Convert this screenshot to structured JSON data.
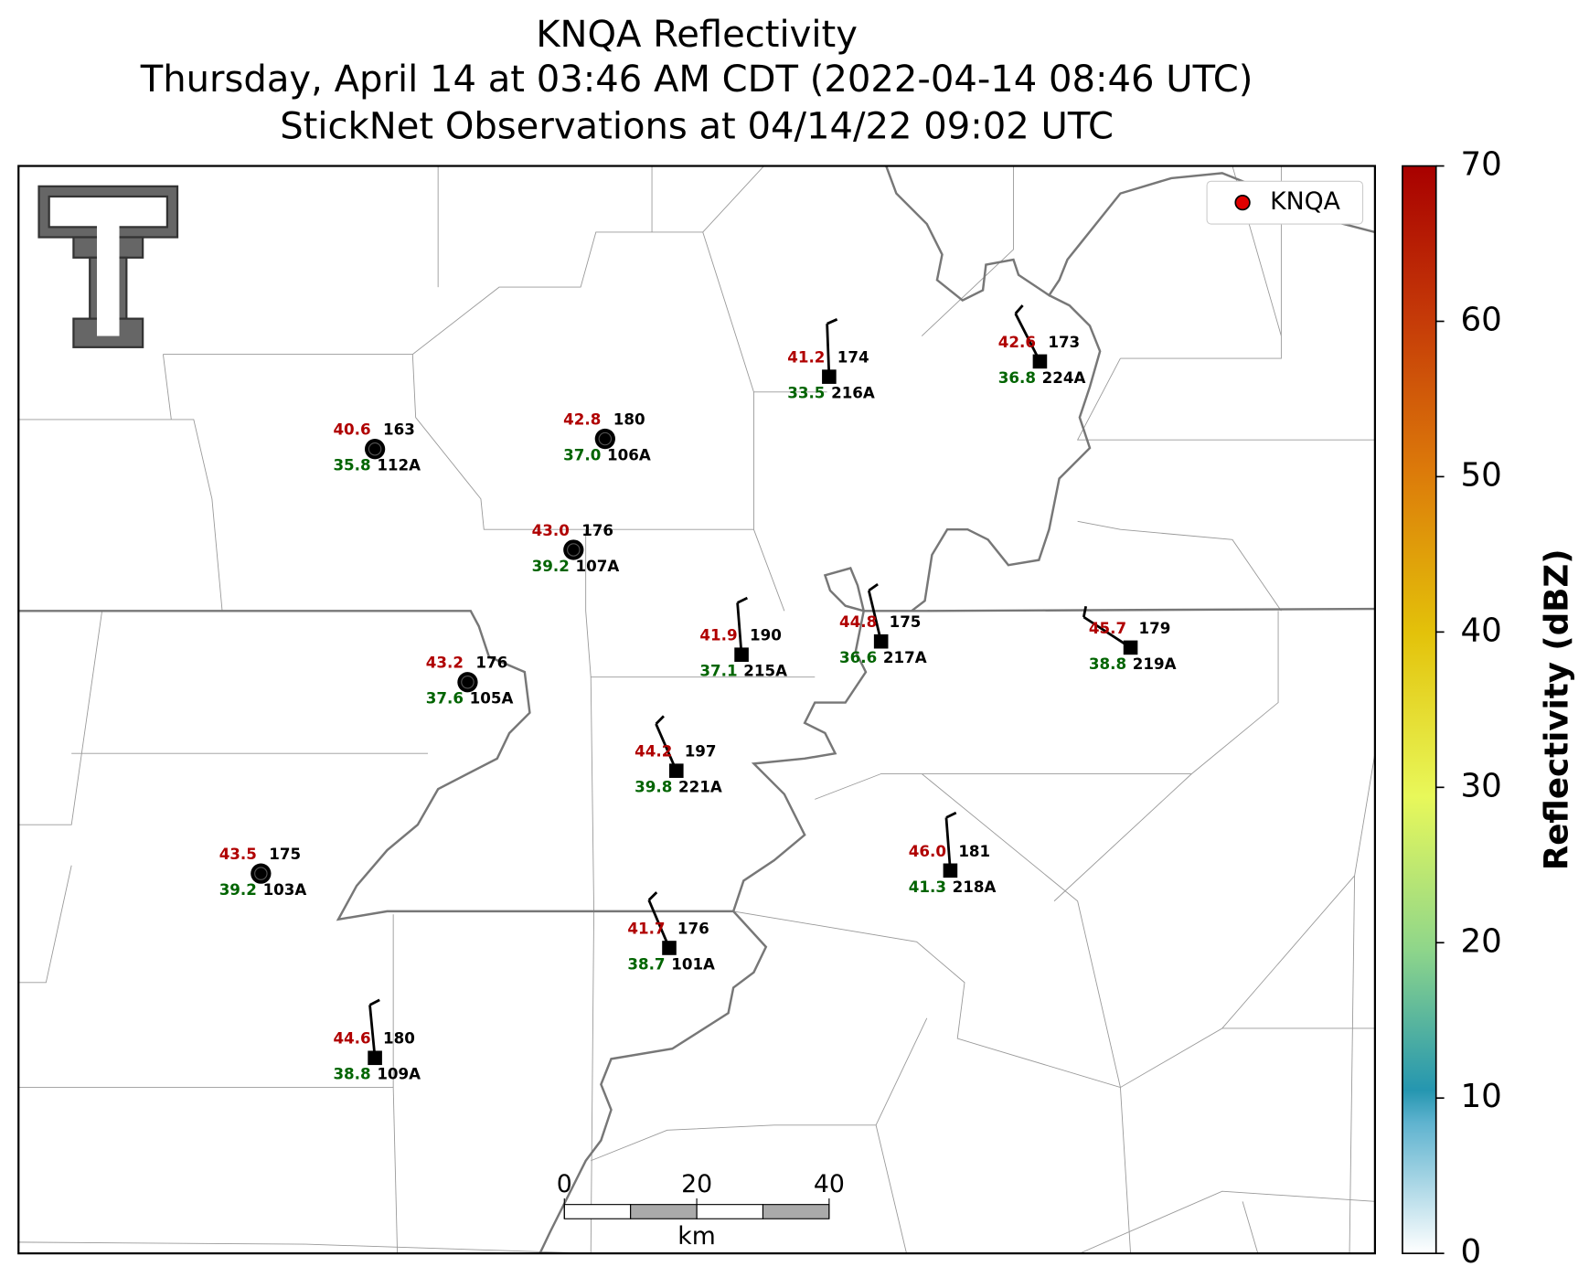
{
  "header": {
    "title": "KNQA Reflectivity",
    "subtitle": "Thursday, April 14 at 03:46 AM CDT (2022-04-14 08:46 UTC)",
    "observations": "StickNet Observations at 04/14/22 09:02 UTC"
  },
  "legend": {
    "label": "KNQA"
  },
  "colorbar": {
    "label": "Reflectivity (dBZ)",
    "lim": [
      0,
      70
    ],
    "ticks": [
      0,
      10,
      20,
      30,
      40,
      50,
      60,
      70
    ]
  },
  "scalebar": {
    "unit": "km",
    "lim": [
      0,
      40
    ],
    "ticks": [
      0,
      20,
      40
    ]
  },
  "stations": [
    {
      "id": "112A",
      "temperature": "40.6",
      "dewpoint": "35.8",
      "value": "163"
    },
    {
      "id": "106A",
      "temperature": "42.8",
      "dewpoint": "37.0",
      "value": "180"
    },
    {
      "id": "107A",
      "temperature": "43.0",
      "dewpoint": "39.2",
      "value": "176"
    },
    {
      "id": "105A",
      "temperature": "43.2",
      "dewpoint": "37.6",
      "value": "176"
    },
    {
      "id": "103A",
      "temperature": "43.5",
      "dewpoint": "39.2",
      "value": "175"
    },
    {
      "id": "216A",
      "temperature": "41.2",
      "dewpoint": "33.5",
      "value": "174"
    },
    {
      "id": "224A",
      "temperature": "42.6",
      "dewpoint": "36.8",
      "value": "173"
    },
    {
      "id": "215A",
      "temperature": "41.9",
      "dewpoint": "37.1",
      "value": "190"
    },
    {
      "id": "217A",
      "temperature": "44.8",
      "dewpoint": "36.6",
      "value": "175"
    },
    {
      "id": "219A",
      "temperature": "45.7",
      "dewpoint": "38.8",
      "value": "179"
    },
    {
      "id": "221A",
      "temperature": "44.2",
      "dewpoint": "39.8",
      "value": "197"
    },
    {
      "id": "218A",
      "temperature": "46.0",
      "dewpoint": "41.3",
      "value": "181"
    },
    {
      "id": "101A",
      "temperature": "41.7",
      "dewpoint": "38.7",
      "value": "176"
    },
    {
      "id": "109A",
      "temperature": "44.6",
      "dewpoint": "38.8",
      "value": "180"
    }
  ]
}
